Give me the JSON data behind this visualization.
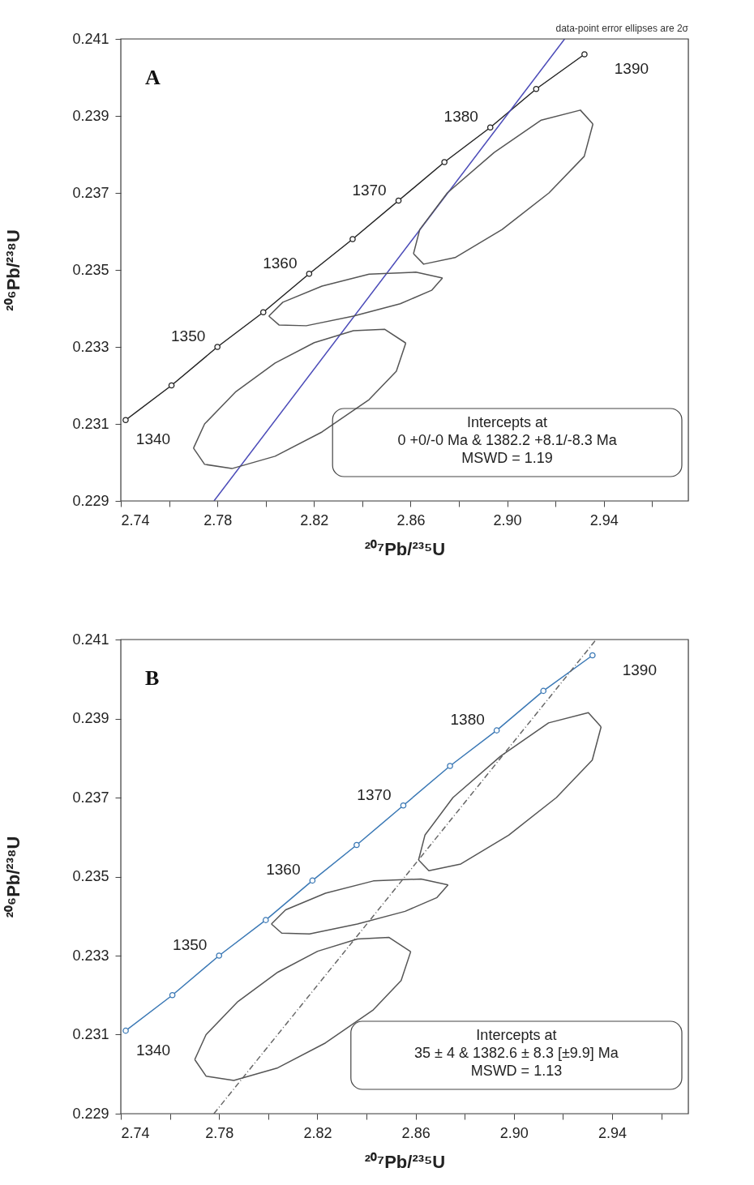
{
  "chart_data": [
    {
      "type": "line",
      "title": "A",
      "xlabel": "²⁰⁷Pb/²³⁵U",
      "ylabel": "²⁰⁶Pb/²³⁸U",
      "xlim": [
        2.74,
        2.975
      ],
      "ylim": [
        0.229,
        0.241
      ],
      "xticks": [
        2.74,
        {
          "value": 2.76,
          "label": null
        },
        2.78,
        {
          "value": 2.8,
          "label": null
        },
        2.82,
        {
          "value": 2.84,
          "label": null
        },
        2.86,
        {
          "value": 2.88,
          "label": null
        },
        {
          "value": 2.9,
          "label": "2.90"
        },
        {
          "value": 2.92,
          "label": null
        },
        2.94,
        {
          "value": 2.96,
          "label": null
        }
      ],
      "yticks": [
        0.229,
        0.231,
        0.233,
        0.235,
        0.237,
        0.239,
        0.241
      ],
      "grid": false,
      "series": [
        {
          "color": "#222222",
          "marker": "circle",
          "x": [
            2.742,
            2.761,
            2.78,
            2.799,
            2.818,
            2.836,
            2.855,
            2.874,
            2.893,
            2.912,
            2.932
          ],
          "values": [
            0.2311,
            0.232,
            0.233,
            0.2339,
            0.2349,
            0.2358,
            0.2368,
            0.2378,
            0.2387,
            0.2397,
            0.2406
          ]
        },
        {
          "color": "#4a4ab8",
          "x": [
            2.7786,
            2.9238
          ],
          "values": [
            0.229,
            0.241
          ]
        },
        {
          "color": "#555555",
          "x": [
            2.7701,
            2.7747,
            2.7877,
            2.8039,
            2.8201,
            2.8363,
            2.8492,
            2.858
          ],
          "values": [
            0.23037,
            0.231,
            0.23184,
            0.23258,
            0.23311,
            0.23342,
            0.23346,
            0.2331
          ]
        },
        {
          "color": "#555555",
          "x": [
            2.7701,
            2.7747,
            2.786,
            2.8039,
            2.8233,
            2.8428,
            2.8541,
            2.858
          ],
          "values": [
            0.23037,
            0.22995,
            0.22984,
            0.23016,
            0.23079,
            0.23163,
            0.23237,
            0.2331
          ]
        },
        {
          "color": "#555555",
          "x": [
            2.8013,
            2.8071,
            2.8233,
            2.8428,
            2.8622,
            2.8732
          ],
          "values": [
            0.2338,
            0.23416,
            0.23458,
            0.23489,
            0.23494,
            0.23479
          ]
        },
        {
          "color": "#555555",
          "x": [
            2.8013,
            2.8055,
            2.8168,
            2.8363,
            2.8557,
            2.8687,
            2.8732
          ],
          "values": [
            0.2338,
            0.23357,
            0.23355,
            0.2338,
            0.23412,
            0.23447,
            0.23479
          ]
        },
        {
          "color": "#555555",
          "x": [
            2.8612,
            2.8638,
            2.8752,
            2.8946,
            2.9141,
            2.9303,
            2.9355
          ],
          "values": [
            0.23542,
            0.23605,
            0.237,
            0.23805,
            0.23889,
            0.23915,
            0.23879
          ]
        },
        {
          "color": "#555555",
          "x": [
            2.8612,
            2.8654,
            2.8784,
            2.8979,
            2.9173,
            2.9319,
            2.9355
          ],
          "values": [
            0.23542,
            0.23515,
            0.23532,
            0.23605,
            0.237,
            0.23795,
            0.23879
          ]
        }
      ],
      "annotations": [
        "data-point error ellipses are 2σ",
        "Intercepts at\n0  +0/-0  Ma & 1382.2  +8.1/-8.3  Ma\nMSWD = 1.19",
        {
          "text": "1340",
          "x": 2.742,
          "y": 0.2311
        },
        {
          "text": "1350",
          "x": 2.78,
          "y": 0.233
        },
        {
          "text": "1360",
          "x": 2.818,
          "y": 0.2349
        },
        {
          "text": "1370",
          "x": 2.855,
          "y": 0.2368
        },
        {
          "text": "1380",
          "x": 2.893,
          "y": 0.2387
        },
        {
          "text": "1390",
          "x": 2.932,
          "y": 0.2406
        }
      ]
    },
    {
      "type": "line",
      "title": "B",
      "xlabel": "²⁰⁷Pb/²³⁵U",
      "ylabel": "²⁰⁶Pb/²³⁸U",
      "xlim": [
        2.74,
        2.971
      ],
      "ylim": [
        0.229,
        0.241
      ],
      "xticks": [
        2.74,
        {
          "value": 2.76,
          "label": null
        },
        2.78,
        {
          "value": 2.8,
          "label": null
        },
        2.82,
        {
          "value": 2.84,
          "label": null
        },
        2.86,
        {
          "value": 2.88,
          "label": null
        },
        {
          "value": 2.9,
          "label": "2.90"
        },
        {
          "value": 2.92,
          "label": null
        },
        2.94,
        {
          "value": 2.96,
          "label": null
        }
      ],
      "yticks": [
        0.229,
        0.231,
        0.233,
        0.235,
        0.237,
        0.239,
        0.241
      ],
      "grid": false,
      "series": [
        {
          "color": "#3a78b5",
          "marker": "circle",
          "x": [
            2.742,
            2.761,
            2.78,
            2.799,
            2.818,
            2.836,
            2.855,
            2.874,
            2.893,
            2.912,
            2.932
          ],
          "values": [
            0.2311,
            0.232,
            0.233,
            0.2339,
            0.2349,
            0.2358,
            0.2368,
            0.2378,
            0.2387,
            0.2397,
            0.2406
          ]
        },
        {
          "color": "#666666",
          "line_style": "dashed",
          "x": [
            2.7779,
            2.9335
          ],
          "values": [
            0.229,
            0.241
          ]
        },
        {
          "color": "#555555",
          "x": [
            2.7701,
            2.7747,
            2.7877,
            2.8039,
            2.8201,
            2.8363,
            2.8492,
            2.858
          ],
          "values": [
            0.23037,
            0.231,
            0.23184,
            0.23258,
            0.23311,
            0.23342,
            0.23346,
            0.2331
          ]
        },
        {
          "color": "#555555",
          "x": [
            2.7701,
            2.7747,
            2.786,
            2.8039,
            2.8233,
            2.8428,
            2.8541,
            2.858
          ],
          "values": [
            0.23037,
            0.22995,
            0.22984,
            0.23016,
            0.23079,
            0.23163,
            0.23237,
            0.2331
          ]
        },
        {
          "color": "#555555",
          "x": [
            2.8013,
            2.8071,
            2.8233,
            2.8428,
            2.8622,
            2.8732
          ],
          "values": [
            0.2338,
            0.23416,
            0.23458,
            0.23489,
            0.23494,
            0.23479
          ]
        },
        {
          "color": "#555555",
          "x": [
            2.8013,
            2.8055,
            2.8168,
            2.8363,
            2.8557,
            2.8687,
            2.8732
          ],
          "values": [
            0.2338,
            0.23357,
            0.23355,
            0.2338,
            0.23412,
            0.23447,
            0.23479
          ]
        },
        {
          "color": "#555555",
          "x": [
            2.8612,
            2.8638,
            2.8752,
            2.8946,
            2.9141,
            2.9303,
            2.9355
          ],
          "values": [
            0.23542,
            0.23605,
            0.237,
            0.23805,
            0.23889,
            0.23915,
            0.23879
          ]
        },
        {
          "color": "#555555",
          "x": [
            2.8612,
            2.8654,
            2.8784,
            2.8979,
            2.9173,
            2.9319,
            2.9355
          ],
          "values": [
            0.23542,
            0.23515,
            0.23532,
            0.23605,
            0.237,
            0.23795,
            0.23879
          ]
        }
      ],
      "annotations": [
        "Intercepts at\n35 ± 4 & 1382.6 ± 8.3   [±9.9]  Ma\nMSWD = 1.13",
        {
          "text": "1340",
          "x": 2.742,
          "y": 0.2311
        },
        {
          "text": "1350",
          "x": 2.78,
          "y": 0.233
        },
        {
          "text": "1360",
          "x": 2.818,
          "y": 0.2349
        },
        {
          "text": "1370",
          "x": 2.855,
          "y": 0.2368
        },
        {
          "text": "1380",
          "x": 2.893,
          "y": 0.2387
        },
        {
          "text": "1390",
          "x": 2.932,
          "y": 0.2406
        }
      ]
    }
  ]
}
